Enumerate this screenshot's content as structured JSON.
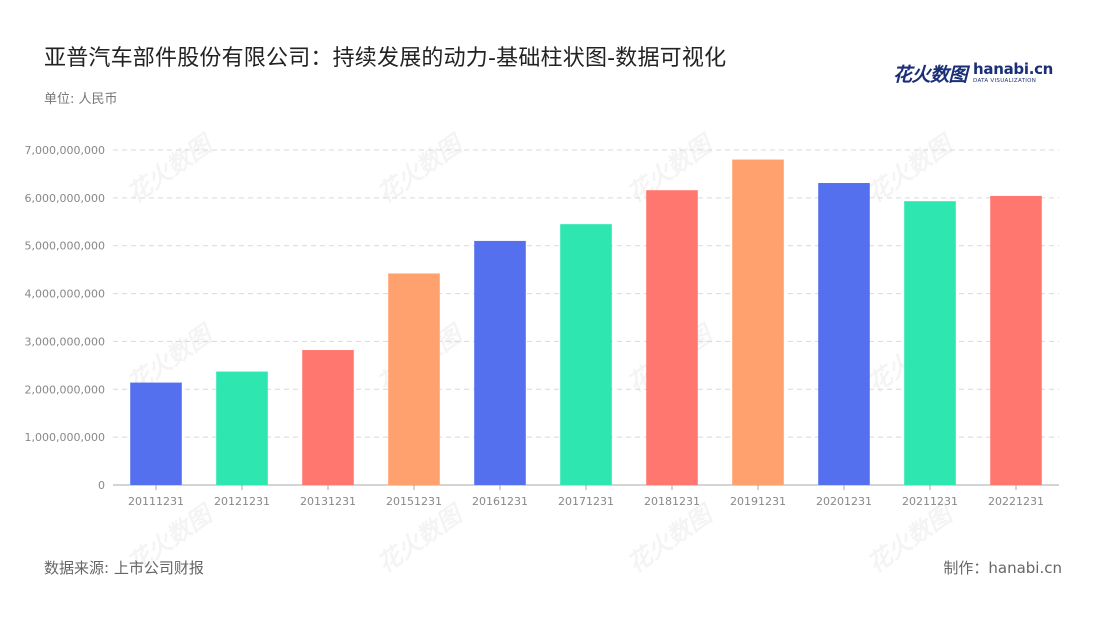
{
  "title": "亚普汽车部件股份有限公司：持续发展的动力-基础柱状图-数据可视化",
  "unit_label": "单位: 人民币",
  "source_label": "数据来源: 上市公司财报",
  "credit_label": "制作：hanabi.cn",
  "logo": {
    "cn": "花火数图",
    "en": "hanabi.cn",
    "en_sub": "DATA VISUALIZATION"
  },
  "watermark_text": "花火数图",
  "colors": [
    "#5470ee",
    "#2ee6b0",
    "#ff776f",
    "#ffa16e"
  ],
  "chart_data": {
    "type": "bar",
    "title": "亚普汽车部件股份有限公司：持续发展的动力-基础柱状图-数据可视化",
    "categories": [
      "20111231",
      "20121231",
      "20131231",
      "20151231",
      "20161231",
      "20171231",
      "20181231",
      "20191231",
      "20201231",
      "20211231",
      "20221231"
    ],
    "values": [
      2140000000,
      2370000000,
      2820000000,
      4420000000,
      5100000000,
      5450000000,
      6160000000,
      6800000000,
      6310000000,
      5930000000,
      6040000000
    ],
    "ylim": [
      0,
      7000000000
    ],
    "yticks": [
      0,
      1000000000,
      2000000000,
      3000000000,
      4000000000,
      5000000000,
      6000000000,
      7000000000
    ],
    "ytick_labels": [
      "0",
      "1,000,000,000",
      "2,000,000,000",
      "3,000,000,000",
      "4,000,000,000",
      "5,000,000,000",
      "6,000,000,000",
      "7,000,000,000"
    ],
    "grid": true,
    "xlabel": "",
    "ylabel": ""
  }
}
